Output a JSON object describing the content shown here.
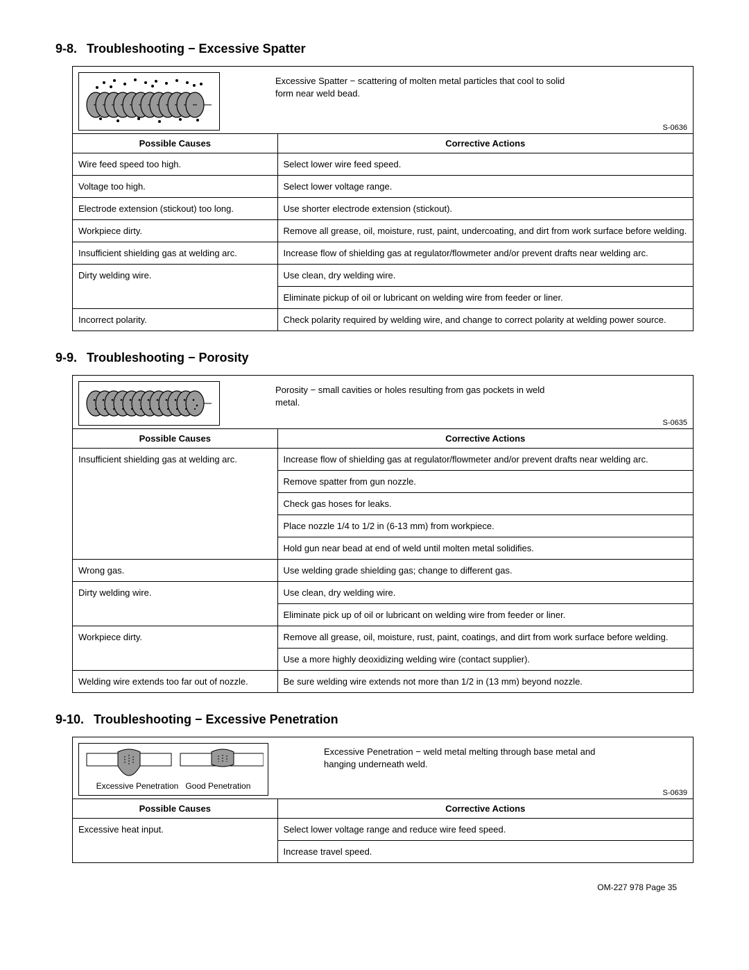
{
  "sections": [
    {
      "number": "9-8.",
      "title": "Troubleshooting − Excessive Spatter",
      "description": "Excessive Spatter − scattering of molten metal particles that cool to solid form near weld bead.",
      "ref": "S-0636",
      "figure": "spatter",
      "columns": [
        "Possible Causes",
        "Corrective Actions"
      ],
      "rows": [
        {
          "cause": "Wire feed speed too high.",
          "actions": [
            "Select lower wire feed speed."
          ]
        },
        {
          "cause": "Voltage too high.",
          "actions": [
            "Select lower voltage range."
          ]
        },
        {
          "cause": "Electrode extension (stickout) too long.",
          "actions": [
            "Use shorter electrode extension (stickout)."
          ]
        },
        {
          "cause": "Workpiece dirty.",
          "actions": [
            "Remove all grease, oil, moisture, rust, paint, undercoating, and dirt from work surface before welding."
          ]
        },
        {
          "cause": "Insufficient shielding gas at welding arc.",
          "actions": [
            "Increase flow of shielding gas at regulator/flowmeter and/or prevent drafts near welding arc."
          ]
        },
        {
          "cause": "Dirty welding wire.",
          "actions": [
            "Use clean, dry welding wire.",
            "Eliminate pickup of oil or lubricant on welding wire from feeder or liner."
          ]
        },
        {
          "cause": "Incorrect polarity.",
          "actions": [
            "Check polarity required by welding wire, and change to correct polarity at welding power source."
          ]
        }
      ]
    },
    {
      "number": "9-9.",
      "title": "Troubleshooting − Porosity",
      "description": "Porosity − small cavities or holes resulting from gas pockets in weld metal.",
      "ref": "S-0635",
      "figure": "porosity",
      "columns": [
        "Possible Causes",
        "Corrective Actions"
      ],
      "rows": [
        {
          "cause": "Insufficient shielding gas at welding arc.",
          "actions": [
            "Increase flow of shielding gas at regulator/flowmeter and/or prevent drafts near welding arc.",
            "Remove spatter from gun nozzle.",
            "Check gas hoses for leaks.",
            "Place nozzle 1/4 to 1/2 in (6-13 mm) from workpiece.",
            "Hold gun near bead at end of weld until molten metal solidifies."
          ]
        },
        {
          "cause": "Wrong gas.",
          "actions": [
            "Use welding grade shielding gas; change to different gas."
          ]
        },
        {
          "cause": "Dirty welding wire.",
          "actions": [
            "Use clean, dry welding wire.",
            "Eliminate pick up of oil or lubricant on welding wire from feeder or liner."
          ]
        },
        {
          "cause": "Workpiece dirty.",
          "actions": [
            "Remove all grease, oil, moisture, rust, paint, coatings, and dirt from work surface before welding.",
            "Use a more highly deoxidizing welding wire (contact supplier)."
          ]
        },
        {
          "cause": "Welding wire extends too far out of nozzle.",
          "actions": [
            "Be sure welding wire extends not more than 1/2 in (13 mm) beyond nozzle."
          ]
        }
      ]
    },
    {
      "number": "9-10.",
      "title": "Troubleshooting − Excessive Penetration",
      "description": "Excessive Penetration − weld metal melting through base metal and hanging underneath weld.",
      "ref": "S-0639",
      "figure": "penetration",
      "figure_labels": [
        "Excessive Penetration",
        "Good Penetration"
      ],
      "columns": [
        "Possible Causes",
        "Corrective Actions"
      ],
      "rows": [
        {
          "cause": "Excessive heat input.",
          "actions": [
            "Select lower voltage range and reduce wire feed speed.",
            "Increase travel speed."
          ]
        }
      ]
    }
  ],
  "footer": "OM-227 978 Page 35",
  "colors": {
    "fill_gray": "#999999",
    "stroke": "#000000"
  }
}
